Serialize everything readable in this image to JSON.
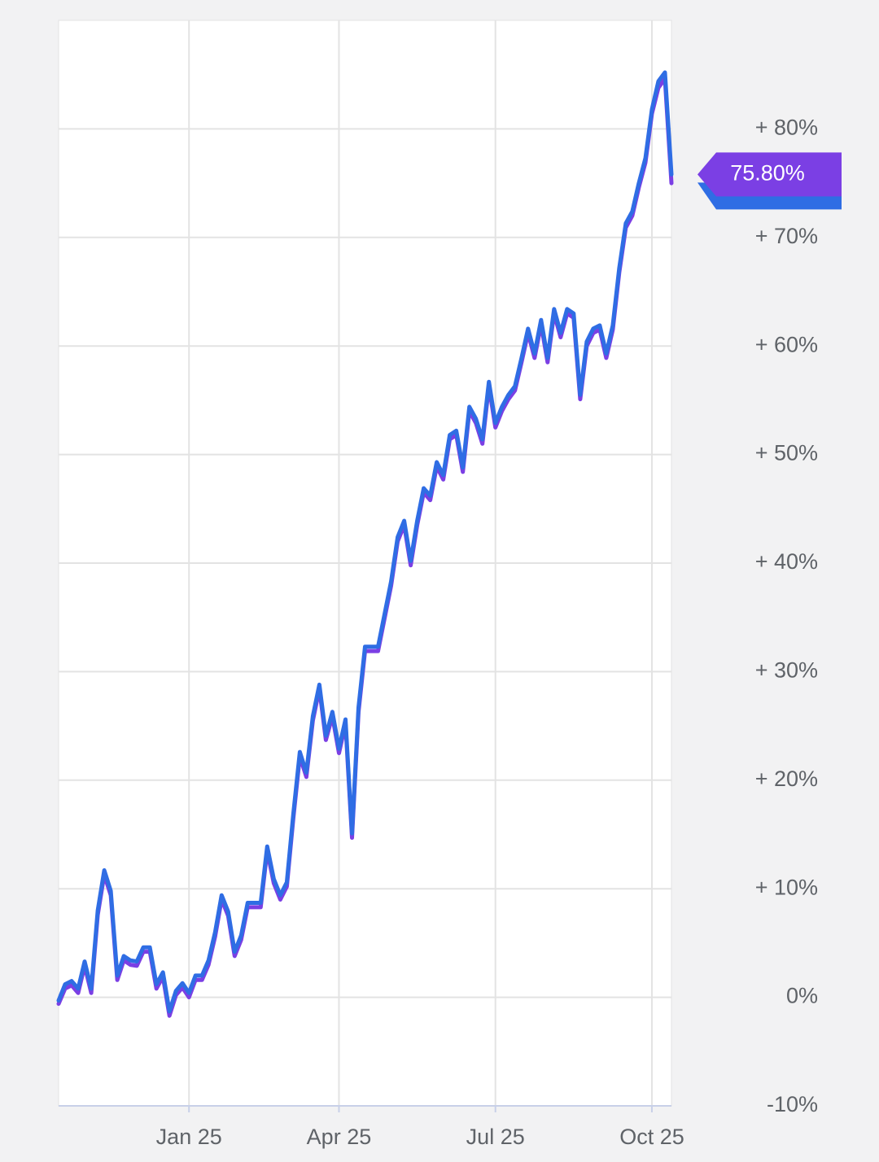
{
  "chart_data": {
    "type": "line",
    "categories": [
      null,
      null,
      null,
      null,
      null,
      null,
      null,
      null,
      null,
      null,
      null,
      null,
      null,
      null,
      null,
      null,
      null,
      null,
      null,
      null,
      "Jan 25",
      null,
      null,
      null,
      null,
      null,
      null,
      null,
      null,
      null,
      null,
      null,
      null,
      null,
      null,
      null,
      null,
      null,
      null,
      null,
      null,
      null,
      null,
      "Apr 25",
      null,
      null,
      null,
      null,
      null,
      null,
      null,
      null,
      null,
      null,
      null,
      null,
      null,
      null,
      null,
      null,
      null,
      null,
      null,
      null,
      null,
      null,
      null,
      "Jul 25",
      null,
      null,
      null,
      null,
      null,
      null,
      null,
      null,
      null,
      null,
      null,
      null,
      null,
      null,
      null,
      null,
      null,
      null,
      null,
      null,
      null,
      null,
      null,
      "Oct 25",
      null,
      null,
      null
    ],
    "series": [
      {
        "color": "#7b3fe4",
        "values": [
          -0.6,
          0.8,
          1.1,
          0.4,
          2.9,
          0.4,
          7.6,
          11.3,
          9.4,
          1.6,
          3.4,
          3.0,
          2.9,
          4.2,
          4.2,
          0.8,
          1.9,
          -1.7,
          0.2,
          0.9,
          0.0,
          1.6,
          1.6,
          3.0,
          5.6,
          9.0,
          7.5,
          3.8,
          5.3,
          8.3,
          8.3,
          8.3,
          13.5,
          10.5,
          9.0,
          10.2,
          16.5,
          22.2,
          20.3,
          25.5,
          28.4,
          23.7,
          25.9,
          22.5,
          25.2,
          14.7,
          26.3,
          31.9,
          31.9,
          31.9,
          34.9,
          37.9,
          42.0,
          43.5,
          39.8,
          43.5,
          46.5,
          45.8,
          48.9,
          47.7,
          51.4,
          51.8,
          48.4,
          54.0,
          52.9,
          51.0,
          56.3,
          52.5,
          54.0,
          55.1,
          55.9,
          58.5,
          61.2,
          58.9,
          62.0,
          58.5,
          63.0,
          60.8,
          63.0,
          62.6,
          55.1,
          60.0,
          61.2,
          61.5,
          58.9,
          61.5,
          66.8,
          70.9,
          72.0,
          74.6,
          76.9,
          81.4,
          83.8,
          84.6,
          75.0
        ]
      },
      {
        "color": "#2f6de4",
        "values": [
          -0.3,
          1.2,
          1.5,
          0.8,
          3.3,
          0.8,
          8.0,
          11.7,
          9.8,
          2.0,
          3.8,
          3.4,
          3.3,
          4.6,
          4.6,
          1.2,
          2.3,
          -1.3,
          0.6,
          1.3,
          0.4,
          2.0,
          2.0,
          3.4,
          6.0,
          9.4,
          7.9,
          4.2,
          5.7,
          8.7,
          8.7,
          8.7,
          13.9,
          10.9,
          9.4,
          10.6,
          16.9,
          22.6,
          20.7,
          25.9,
          28.8,
          24.1,
          26.3,
          22.9,
          25.6,
          15.1,
          26.7,
          32.3,
          32.3,
          32.3,
          35.3,
          38.3,
          42.4,
          43.9,
          40.2,
          43.9,
          46.9,
          46.2,
          49.3,
          48.1,
          51.8,
          52.2,
          48.8,
          54.4,
          53.3,
          51.4,
          56.7,
          52.9,
          54.4,
          55.5,
          56.3,
          58.9,
          61.6,
          59.3,
          62.4,
          58.9,
          63.4,
          61.2,
          63.4,
          63.0,
          55.5,
          60.4,
          61.6,
          61.9,
          59.3,
          61.9,
          67.2,
          71.3,
          72.4,
          75.0,
          77.3,
          81.8,
          84.4,
          85.2,
          75.8
        ]
      }
    ],
    "ylim": [
      -10,
      90
    ],
    "yticks": [
      {
        "value": -10,
        "label": "-10%"
      },
      {
        "value": 0,
        "label": "0%"
      },
      {
        "value": 10,
        "label": "+ 10%"
      },
      {
        "value": 20,
        "label": "+ 20%"
      },
      {
        "value": 30,
        "label": "+ 30%"
      },
      {
        "value": 40,
        "label": "+ 40%"
      },
      {
        "value": 50,
        "label": "+ 50%"
      },
      {
        "value": 60,
        "label": "+ 60%"
      },
      {
        "value": 70,
        "label": "+ 70%"
      },
      {
        "value": 80,
        "label": "+ 80%"
      }
    ],
    "end_label": {
      "value": 75.8,
      "label": "75.80%"
    },
    "grid": true
  }
}
